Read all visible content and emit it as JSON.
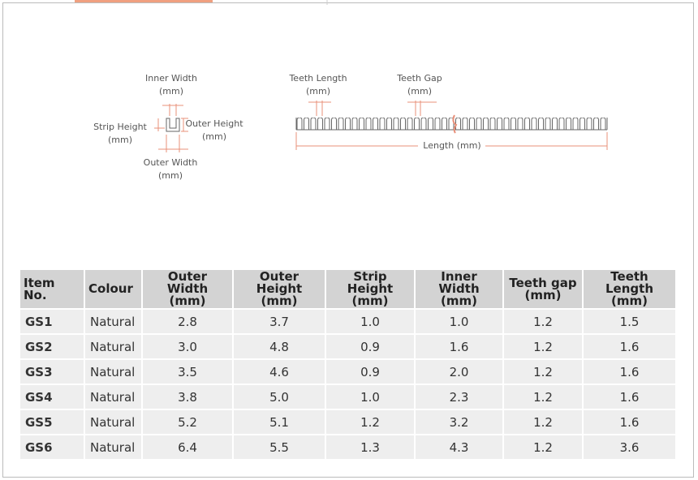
{
  "diagrams": {
    "profile": {
      "inner_width": {
        "name": "Inner Width",
        "unit": "(mm)"
      },
      "strip_height": {
        "name": "Strip Height",
        "unit": "(mm)"
      },
      "outer_height": {
        "name": "Outer Height",
        "unit": "(mm)"
      },
      "outer_width": {
        "name": "Outer Width",
        "unit": "(mm)"
      }
    },
    "strip": {
      "teeth_length": {
        "name": "Teeth Length",
        "unit": "(mm)"
      },
      "teeth_gap": {
        "name": "Teeth Gap",
        "unit": "(mm)"
      },
      "length": "Length (mm)"
    }
  },
  "table": {
    "header": [
      {
        "name": "Item No."
      },
      {
        "name": "Colour"
      },
      {
        "name": "Outer Width",
        "unit": "(mm)"
      },
      {
        "name": "Outer Height",
        "unit": "(mm)"
      },
      {
        "name": "Strip Height",
        "unit": "(mm)"
      },
      {
        "name": "Inner Width",
        "unit": "(mm)"
      },
      {
        "name": "Teeth gap",
        "unit": "(mm)"
      },
      {
        "name": "Teeth Length",
        "unit": "(mm)"
      }
    ],
    "rows": [
      [
        "GS1",
        "Natural",
        "2.8",
        "3.7",
        "1.0",
        "1.0",
        "1.2",
        "1.5"
      ],
      [
        "GS2",
        "Natural",
        "3.0",
        "4.8",
        "0.9",
        "1.6",
        "1.2",
        "1.6"
      ],
      [
        "GS3",
        "Natural",
        "3.5",
        "4.6",
        "0.9",
        "2.0",
        "1.2",
        "1.6"
      ],
      [
        "GS4",
        "Natural",
        "3.8",
        "5.0",
        "1.0",
        "2.3",
        "1.2",
        "1.6"
      ],
      [
        "GS5",
        "Natural",
        "5.2",
        "5.1",
        "1.2",
        "3.2",
        "1.2",
        "1.6"
      ],
      [
        "GS6",
        "Natural",
        "6.4",
        "5.5",
        "1.3",
        "4.3",
        "1.2",
        "3.6"
      ]
    ]
  }
}
